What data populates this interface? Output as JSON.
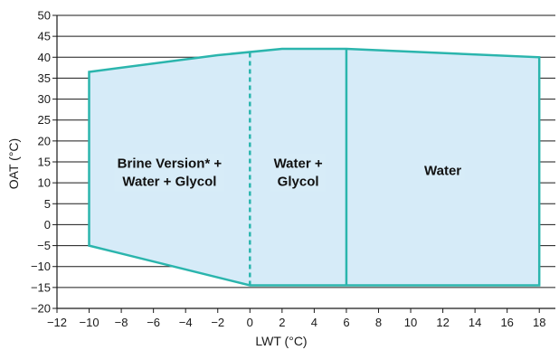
{
  "chart_data": {
    "type": "area",
    "xlabel": "LWT (°C)",
    "ylabel": "OAT (°C)",
    "xlim": [
      -12,
      19
    ],
    "ylim": [
      -20,
      50
    ],
    "xticks": [
      -12,
      -10,
      -8,
      -6,
      -4,
      -2,
      0,
      2,
      4,
      6,
      8,
      10,
      12,
      14,
      16,
      18
    ],
    "yticks": [
      -20,
      -15,
      -10,
      -5,
      0,
      5,
      10,
      15,
      20,
      25,
      30,
      35,
      40,
      45,
      50
    ],
    "grid": "horizontal",
    "envelope": {
      "x": [
        -10,
        -2,
        2,
        6,
        18,
        18,
        6,
        0,
        -10
      ],
      "y": [
        36.5,
        40.5,
        42,
        42,
        40,
        -14.5,
        -14.5,
        -14.5,
        -5
      ]
    },
    "dividers": [
      {
        "x": 0,
        "y": [
          -14.5,
          41.2
        ],
        "style": "dashed"
      },
      {
        "x": 6,
        "y": [
          -14.5,
          42
        ],
        "style": "solid"
      }
    ],
    "regions": [
      {
        "lines": [
          "Brine Version* +",
          "Water + Glycol"
        ],
        "x": -5,
        "y": 12.5
      },
      {
        "lines": [
          "Water +",
          "Glycol"
        ],
        "x": 3,
        "y": 12.5
      },
      {
        "lines": [
          "Water"
        ],
        "x": 12,
        "y": 13
      }
    ],
    "colors": {
      "fill": "#d6ebf8",
      "outline": "#2bb5ad",
      "grid": "#1a1a1a",
      "axis": "#1a1a1a"
    }
  }
}
